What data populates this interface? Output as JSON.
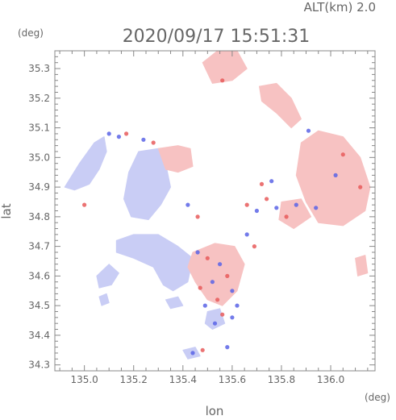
{
  "chart_data": {
    "type": "heatmap",
    "title": "2020/09/17 15:51:31",
    "altitude_label": "ALT(km) 2.0",
    "xlabel": "lon",
    "ylabel": "lat",
    "x_unit": "(deg)",
    "y_unit": "(deg)",
    "xlim": [
      134.88,
      136.18
    ],
    "ylim": [
      34.28,
      35.36
    ],
    "x_ticks": [
      135.0,
      135.2,
      135.4,
      135.6,
      135.8,
      136.0
    ],
    "y_ticks": [
      34.3,
      34.4,
      34.5,
      34.6,
      34.7,
      34.8,
      34.9,
      35.0,
      35.1,
      35.2,
      35.3
    ],
    "x_tick_labels": [
      "135.0",
      "135.2",
      "135.4",
      "135.6",
      "135.8",
      "136.0"
    ],
    "y_tick_labels": [
      "34.3",
      "34.4",
      "34.5",
      "34.6",
      "34.7",
      "34.8",
      "34.9",
      "35.0",
      "35.1",
      "35.2",
      "35.3"
    ],
    "colors": {
      "negative": "#c9cdf5",
      "positive": "#f7c2c2",
      "strong_negative": "#5a64e6",
      "strong_positive": "#e85a5a",
      "frame": "#888888"
    },
    "regions": [
      {
        "sign": "negative",
        "points": [
          [
            134.92,
            34.9
          ],
          [
            134.98,
            34.98
          ],
          [
            135.04,
            35.05
          ],
          [
            135.08,
            35.07
          ],
          [
            135.09,
            35.02
          ],
          [
            135.06,
            34.96
          ],
          [
            135.02,
            34.91
          ],
          [
            134.96,
            34.89
          ]
        ]
      },
      {
        "sign": "negative",
        "points": [
          [
            135.16,
            34.86
          ],
          [
            135.18,
            34.95
          ],
          [
            135.22,
            35.02
          ],
          [
            135.3,
            35.03
          ],
          [
            135.33,
            34.98
          ],
          [
            135.35,
            34.9
          ],
          [
            135.31,
            34.84
          ],
          [
            135.26,
            34.79
          ],
          [
            135.19,
            34.8
          ]
        ]
      },
      {
        "sign": "positive",
        "points": [
          [
            135.3,
            35.03
          ],
          [
            135.38,
            35.04
          ],
          [
            135.43,
            35.03
          ],
          [
            135.44,
            34.97
          ],
          [
            135.38,
            34.95
          ],
          [
            135.33,
            34.96
          ]
        ]
      },
      {
        "sign": "negative",
        "points": [
          [
            135.13,
            34.72
          ],
          [
            135.2,
            34.74
          ],
          [
            135.3,
            34.74
          ],
          [
            135.38,
            34.7
          ],
          [
            135.44,
            34.66
          ],
          [
            135.42,
            34.58
          ],
          [
            135.36,
            34.55
          ],
          [
            135.32,
            34.57
          ],
          [
            135.28,
            34.63
          ],
          [
            135.2,
            34.66
          ],
          [
            135.13,
            34.68
          ]
        ]
      },
      {
        "sign": "negative",
        "points": [
          [
            135.05,
            34.6
          ],
          [
            135.1,
            34.64
          ],
          [
            135.14,
            34.61
          ],
          [
            135.11,
            34.57
          ],
          [
            135.06,
            34.56
          ]
        ]
      },
      {
        "sign": "negative",
        "points": [
          [
            135.06,
            34.53
          ],
          [
            135.09,
            34.54
          ],
          [
            135.1,
            34.51
          ],
          [
            135.07,
            34.5
          ]
        ]
      },
      {
        "sign": "negative",
        "points": [
          [
            135.33,
            34.52
          ],
          [
            135.38,
            34.53
          ],
          [
            135.4,
            34.5
          ],
          [
            135.35,
            34.49
          ]
        ]
      },
      {
        "sign": "positive",
        "points": [
          [
            135.44,
            34.68
          ],
          [
            135.53,
            34.71
          ],
          [
            135.61,
            34.7
          ],
          [
            135.65,
            34.64
          ],
          [
            135.62,
            34.55
          ],
          [
            135.56,
            34.5
          ],
          [
            135.5,
            34.52
          ],
          [
            135.45,
            34.58
          ],
          [
            135.42,
            34.63
          ]
        ]
      },
      {
        "sign": "negative",
        "points": [
          [
            135.5,
            34.48
          ],
          [
            135.55,
            34.49
          ],
          [
            135.57,
            34.44
          ],
          [
            135.52,
            34.42
          ],
          [
            135.49,
            34.44
          ]
        ]
      },
      {
        "sign": "positive",
        "points": [
          [
            135.48,
            35.32
          ],
          [
            135.54,
            35.36
          ],
          [
            135.62,
            35.36
          ],
          [
            135.66,
            35.3
          ],
          [
            135.6,
            35.26
          ],
          [
            135.52,
            35.25
          ]
        ]
      },
      {
        "sign": "positive",
        "points": [
          [
            135.71,
            35.24
          ],
          [
            135.78,
            35.25
          ],
          [
            135.84,
            35.2
          ],
          [
            135.88,
            35.13
          ],
          [
            135.84,
            35.1
          ],
          [
            135.78,
            35.15
          ],
          [
            135.72,
            35.19
          ]
        ]
      },
      {
        "sign": "positive",
        "points": [
          [
            135.88,
            35.05
          ],
          [
            135.95,
            35.09
          ],
          [
            136.05,
            35.07
          ],
          [
            136.12,
            35.0
          ],
          [
            136.16,
            34.9
          ],
          [
            136.14,
            34.82
          ],
          [
            136.05,
            34.77
          ],
          [
            135.95,
            34.78
          ],
          [
            135.9,
            34.85
          ],
          [
            135.86,
            34.94
          ]
        ]
      },
      {
        "sign": "positive",
        "points": [
          [
            135.8,
            34.85
          ],
          [
            135.88,
            34.86
          ],
          [
            135.92,
            34.8
          ],
          [
            135.85,
            34.76
          ],
          [
            135.79,
            34.79
          ]
        ]
      },
      {
        "sign": "positive",
        "points": [
          [
            136.1,
            34.66
          ],
          [
            136.14,
            34.67
          ],
          [
            136.15,
            34.61
          ],
          [
            136.11,
            34.6
          ]
        ]
      },
      {
        "sign": "negative",
        "points": [
          [
            135.4,
            34.35
          ],
          [
            135.45,
            34.36
          ],
          [
            135.47,
            34.33
          ],
          [
            135.42,
            34.32
          ]
        ]
      }
    ],
    "speckles": [
      {
        "sign": "strong_negative",
        "x": 135.14,
        "y": 35.07
      },
      {
        "sign": "strong_positive",
        "x": 135.17,
        "y": 35.08
      },
      {
        "sign": "strong_negative",
        "x": 135.24,
        "y": 35.06
      },
      {
        "sign": "strong_positive",
        "x": 135.28,
        "y": 35.05
      },
      {
        "sign": "strong_positive",
        "x": 135.0,
        "y": 34.84
      },
      {
        "sign": "strong_negative",
        "x": 135.46,
        "y": 34.68
      },
      {
        "sign": "strong_positive",
        "x": 135.5,
        "y": 34.66
      },
      {
        "sign": "strong_negative",
        "x": 135.55,
        "y": 34.64
      },
      {
        "sign": "strong_positive",
        "x": 135.58,
        "y": 34.6
      },
      {
        "sign": "strong_negative",
        "x": 135.52,
        "y": 34.58
      },
      {
        "sign": "strong_positive",
        "x": 135.47,
        "y": 34.56
      },
      {
        "sign": "strong_negative",
        "x": 135.6,
        "y": 34.55
      },
      {
        "sign": "strong_positive",
        "x": 135.54,
        "y": 34.52
      },
      {
        "sign": "strong_negative",
        "x": 135.62,
        "y": 34.5
      },
      {
        "sign": "strong_negative",
        "x": 135.49,
        "y": 34.5
      },
      {
        "sign": "strong_positive",
        "x": 135.56,
        "y": 34.47
      },
      {
        "sign": "strong_negative",
        "x": 135.53,
        "y": 34.44
      },
      {
        "sign": "strong_negative",
        "x": 135.6,
        "y": 34.46
      },
      {
        "sign": "strong_positive",
        "x": 135.66,
        "y": 34.84
      },
      {
        "sign": "strong_negative",
        "x": 135.7,
        "y": 34.82
      },
      {
        "sign": "strong_positive",
        "x": 135.74,
        "y": 34.86
      },
      {
        "sign": "strong_negative",
        "x": 135.78,
        "y": 34.83
      },
      {
        "sign": "strong_positive",
        "x": 135.82,
        "y": 34.8
      },
      {
        "sign": "strong_negative",
        "x": 135.86,
        "y": 34.84
      },
      {
        "sign": "strong_positive",
        "x": 136.05,
        "y": 35.01
      },
      {
        "sign": "strong_positive",
        "x": 136.12,
        "y": 34.9
      },
      {
        "sign": "strong_negative",
        "x": 136.02,
        "y": 34.94
      },
      {
        "sign": "strong_negative",
        "x": 135.94,
        "y": 34.83
      },
      {
        "sign": "strong_positive",
        "x": 135.72,
        "y": 34.91
      },
      {
        "sign": "strong_negative",
        "x": 135.76,
        "y": 34.92
      },
      {
        "sign": "strong_negative",
        "x": 135.42,
        "y": 34.84
      },
      {
        "sign": "strong_positive",
        "x": 135.46,
        "y": 34.8
      },
      {
        "sign": "strong_negative",
        "x": 135.66,
        "y": 34.74
      },
      {
        "sign": "strong_positive",
        "x": 135.69,
        "y": 34.7
      },
      {
        "sign": "strong_negative",
        "x": 135.44,
        "y": 34.34
      },
      {
        "sign": "strong_positive",
        "x": 135.48,
        "y": 34.35
      },
      {
        "sign": "strong_negative",
        "x": 135.58,
        "y": 34.36
      },
      {
        "sign": "strong_negative",
        "x": 135.1,
        "y": 35.08
      },
      {
        "sign": "strong_positive",
        "x": 135.56,
        "y": 35.26
      },
      {
        "sign": "strong_negative",
        "x": 135.91,
        "y": 35.09
      }
    ]
  }
}
